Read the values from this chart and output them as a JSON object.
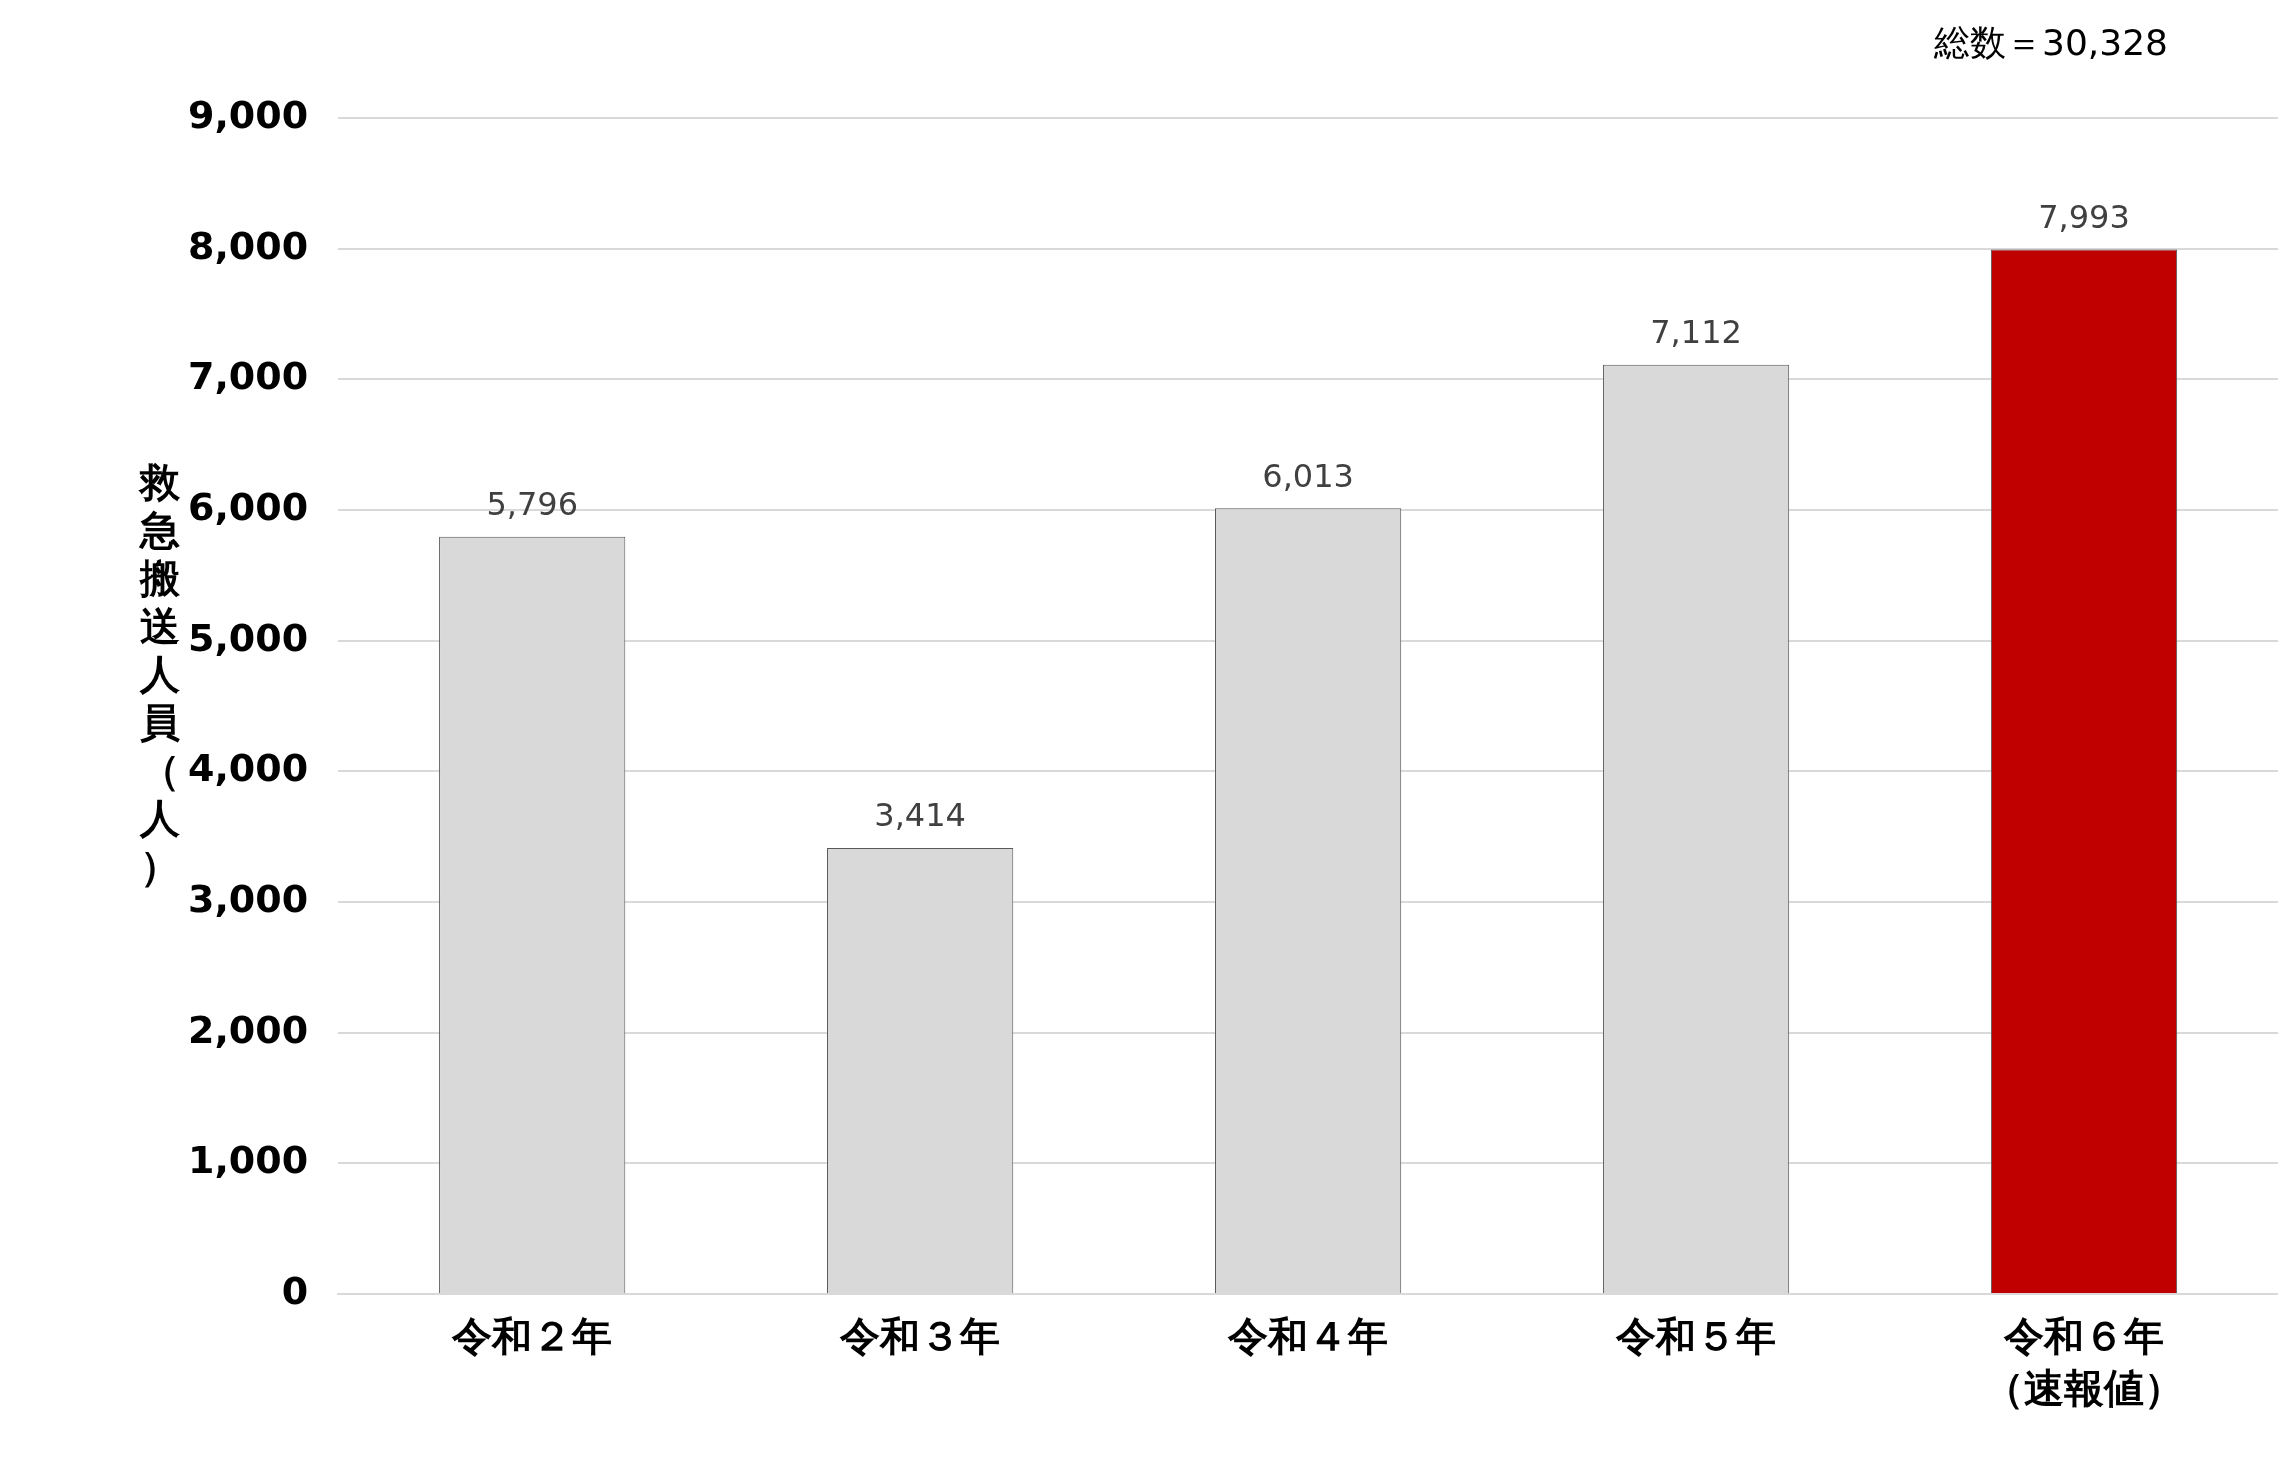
{
  "chart_data": {
    "type": "bar",
    "ylabel": "救急搬送人員（人）",
    "categories": [
      "令和２年",
      "令和３年",
      "令和４年",
      "令和５年",
      "令和６年（速報値）"
    ],
    "values": [
      5796,
      3414,
      6013,
      7112,
      7993
    ],
    "value_labels": [
      "5,796",
      "3,414",
      "6,013",
      "7,112",
      "7,993"
    ],
    "colors": [
      "#d9d9d9",
      "#d9d9d9",
      "#d9d9d9",
      "#d9d9d9",
      "#c00000"
    ],
    "ylim": [
      0,
      9000
    ],
    "yticks": [
      {
        "value": 0,
        "label": "0"
      },
      {
        "value": 1000,
        "label": "1,000"
      },
      {
        "value": 2000,
        "label": "2,000"
      },
      {
        "value": 3000,
        "label": "3,000"
      },
      {
        "value": 4000,
        "label": "4,000"
      },
      {
        "value": 5000,
        "label": "5,000"
      },
      {
        "value": 6000,
        "label": "6,000"
      },
      {
        "value": 7000,
        "label": "7,000"
      },
      {
        "value": 8000,
        "label": "8,000"
      },
      {
        "value": 9000,
        "label": "9,000"
      }
    ],
    "grid": "y",
    "annotations": [
      "総数＝30,328"
    ]
  }
}
